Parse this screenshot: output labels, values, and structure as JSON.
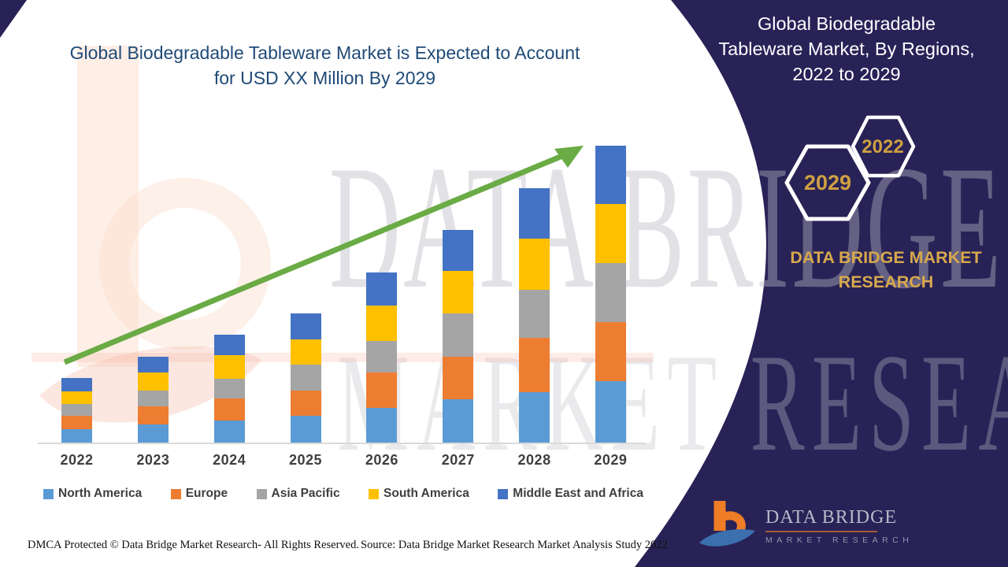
{
  "palette": {
    "panel_navy": "#282257",
    "gold": "#d8a94c",
    "hex_gold": "#cfa041",
    "title_blue": "#1f4a77",
    "arrow_green": "#6aab45",
    "axis_gray": "#d9d9d9",
    "legend_text": "#3f3f3f"
  },
  "left": {
    "title_line1": "Global Biodegradable Tableware Market is Expected to Account",
    "title_line2": "for USD XX Million By 2029"
  },
  "right_panel": {
    "title_line1": "Global Biodegradable",
    "title_line2": "Tableware Market, By Regions,",
    "title_line3": "2022 to 2029",
    "hexagons": [
      {
        "label": "2029"
      },
      {
        "label": "2022"
      }
    ],
    "brand_line1": "DATA BRIDGE MARKET",
    "brand_line2": "RESEARCH"
  },
  "logo": {
    "wordmark": "DATA BRIDGE",
    "subtitle": "MARKET RESEARCH"
  },
  "watermark": {
    "line1": "DATA BRIDGE",
    "line2": "MARKET RESEARCH"
  },
  "footer": {
    "dmca": "DMCA Protected © Data Bridge Market Research- All Rights Reserved.",
    "source": "Source: Data Bridge Market Research Market Analysis Study 2022"
  },
  "chart_data": {
    "type": "bar",
    "stacked": true,
    "title": "Global Biodegradable Tableware Market is Expected to Account for USD XX Million By 2029",
    "xlabel": "",
    "ylabel": "",
    "units": "relative units (chart states market value only as USD XX Million)",
    "categories": [
      "2022",
      "2023",
      "2024",
      "2025",
      "2026",
      "2027",
      "2028",
      "2029"
    ],
    "series": [
      {
        "name": "North America",
        "color": "#5B9BD5",
        "values": [
          17,
          23,
          28,
          34,
          44,
          55,
          64,
          78
        ]
      },
      {
        "name": "Europe",
        "color": "#ED7D31",
        "values": [
          17,
          23,
          28,
          32,
          45,
          54,
          69,
          75
        ]
      },
      {
        "name": "Asia Pacific",
        "color": "#A5A5A5",
        "values": [
          15,
          20,
          25,
          33,
          40,
          55,
          61,
          75
        ]
      },
      {
        "name": "South America",
        "color": "#FFC000",
        "values": [
          16,
          23,
          30,
          32,
          45,
          54,
          65,
          75
        ]
      },
      {
        "name": "Middle East and Africa",
        "color": "#4472C4",
        "values": [
          17,
          20,
          26,
          33,
          42,
          52,
          64,
          74
        ]
      }
    ],
    "totals_by_year": [
      82,
      109,
      137,
      164,
      216,
      270,
      323,
      377
    ],
    "ylim": [
      0,
      380
    ],
    "grid": false,
    "legend_position": "bottom",
    "trend_arrow": "upward diagonal green arrow from 2022 to 2029"
  }
}
